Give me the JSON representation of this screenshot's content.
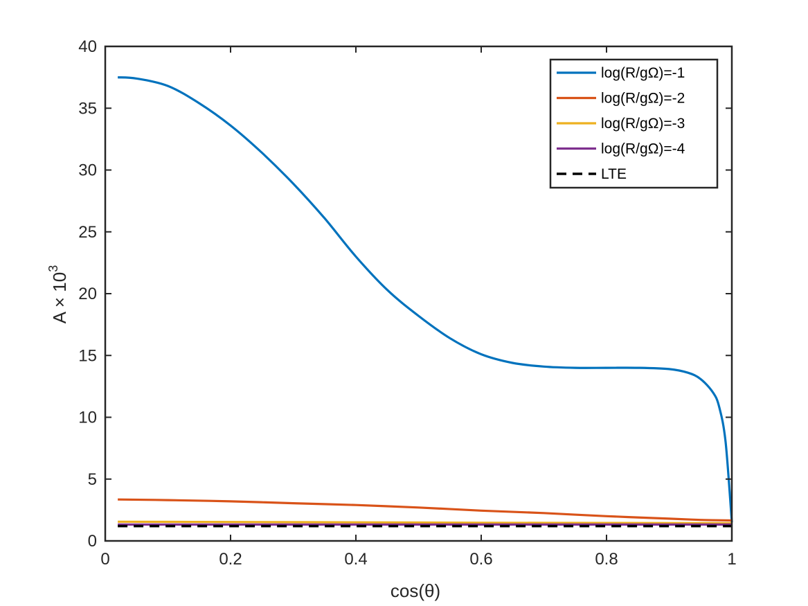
{
  "chart_data": {
    "type": "line",
    "xlabel": "cos(θ)",
    "ylabel": "A × 10",
    "ylabel_exponent": "3",
    "xlim": [
      0,
      1
    ],
    "ylim": [
      0,
      40
    ],
    "xticks": [
      "0",
      "0.2",
      "0.4",
      "0.6",
      "0.8",
      "1"
    ],
    "yticks": [
      "0",
      "5",
      "10",
      "15",
      "20",
      "25",
      "30",
      "35",
      "40"
    ],
    "grid": false,
    "legend_position": "top-right",
    "series": [
      {
        "name": "log(R/gΩ)=-1",
        "color": "#0072BD",
        "style": "solid",
        "x": [
          0.02,
          0.05,
          0.1,
          0.15,
          0.2,
          0.25,
          0.3,
          0.35,
          0.4,
          0.45,
          0.5,
          0.55,
          0.6,
          0.65,
          0.7,
          0.75,
          0.8,
          0.85,
          0.9,
          0.93,
          0.95,
          0.97,
          0.98,
          0.99,
          1.0
        ],
        "y": [
          37.5,
          37.4,
          36.8,
          35.4,
          33.6,
          31.4,
          28.9,
          26.1,
          23.0,
          20.3,
          18.2,
          16.4,
          15.1,
          14.4,
          14.1,
          14.0,
          14.0,
          14.0,
          13.9,
          13.6,
          13.1,
          12.0,
          10.8,
          8.0,
          1.5
        ]
      },
      {
        "name": "log(R/gΩ)=-2",
        "color": "#D95319",
        "style": "solid",
        "x": [
          0.02,
          0.1,
          0.2,
          0.3,
          0.4,
          0.5,
          0.6,
          0.7,
          0.8,
          0.9,
          0.95,
          1.0
        ],
        "y": [
          3.35,
          3.3,
          3.2,
          3.05,
          2.9,
          2.7,
          2.45,
          2.25,
          2.0,
          1.8,
          1.7,
          1.65
        ]
      },
      {
        "name": "log(R/gΩ)=-3",
        "color": "#EDB120",
        "style": "solid",
        "x": [
          0.02,
          0.2,
          0.4,
          0.6,
          0.8,
          1.0
        ],
        "y": [
          1.55,
          1.53,
          1.5,
          1.47,
          1.45,
          1.43
        ]
      },
      {
        "name": "log(R/gΩ)=-4",
        "color": "#7E2F8E",
        "style": "solid",
        "x": [
          0.02,
          0.2,
          0.4,
          0.6,
          0.8,
          1.0
        ],
        "y": [
          1.32,
          1.32,
          1.32,
          1.32,
          1.32,
          1.32
        ]
      },
      {
        "name": "LTE",
        "color": "#000000",
        "style": "dashed",
        "x": [
          0.02,
          1.0
        ],
        "y": [
          1.2,
          1.2
        ]
      }
    ]
  }
}
